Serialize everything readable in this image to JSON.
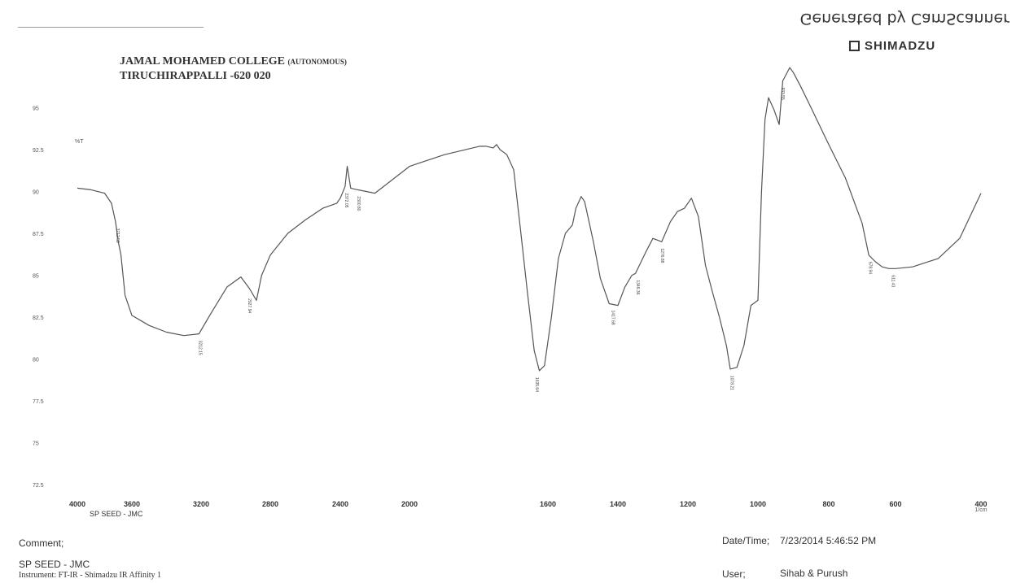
{
  "watermark": "Generated by CamScanner",
  "brand": "SHIMADZU",
  "header": {
    "line1_main": "JAMAL MOHAMED COLLEGE",
    "line1_suffix": "(AUTONOMOUS)",
    "line2": "TIRUCHIRAPPALLI -620 020"
  },
  "chart_data": {
    "type": "line",
    "title": "",
    "xlabel": "1/cm",
    "ylabel": "%T",
    "xlim": [
      4000,
      400
    ],
    "ylim": [
      72.5,
      97.5
    ],
    "x_ticks": [
      4000,
      3600,
      3200,
      2800,
      2400,
      2000,
      1600,
      1400,
      1200,
      1000,
      800,
      600,
      400
    ],
    "y_ticks": [
      72.5,
      75,
      77.5,
      80,
      82.5,
      85,
      87.5,
      90,
      92.5,
      95
    ],
    "sample_label": "SP SEED - JMC",
    "series": [
      {
        "x": [
          4000,
          3900,
          3800,
          3750,
          3720,
          3700,
          3680,
          3650,
          3600,
          3500,
          3400,
          3300,
          3212,
          3150,
          3050,
          2970,
          2920,
          2880,
          2850,
          2800,
          2700,
          2600,
          2500,
          2420,
          2400,
          2372,
          2360,
          2340,
          2300,
          2200,
          2100,
          2000,
          1900,
          1800,
          1780,
          1760,
          1750,
          1740,
          1720,
          1700,
          1680,
          1660,
          1640,
          1625,
          1610,
          1590,
          1570,
          1550,
          1530,
          1520,
          1505,
          1495,
          1470,
          1450,
          1425,
          1400,
          1380,
          1360,
          1350,
          1320,
          1300,
          1275,
          1250,
          1230,
          1210,
          1190,
          1170,
          1150,
          1130,
          1110,
          1090,
          1079,
          1060,
          1040,
          1020,
          1000,
          990,
          980,
          970,
          955,
          940,
          930,
          910,
          900,
          880,
          850,
          800,
          750,
          700,
          680,
          660,
          640,
          620,
          600,
          560,
          500,
          450,
          400
        ],
        "y": [
          90.2,
          90.1,
          89.9,
          89.3,
          88.2,
          87.0,
          86.2,
          83.8,
          82.6,
          82.0,
          81.6,
          81.4,
          81.5,
          82.6,
          84.3,
          84.9,
          84.2,
          83.5,
          85.0,
          86.2,
          87.5,
          88.3,
          89.0,
          89.3,
          89.6,
          90.3,
          91.5,
          90.2,
          90.1,
          89.9,
          90.7,
          91.5,
          92.2,
          92.7,
          92.7,
          92.6,
          92.8,
          92.5,
          92.2,
          91.3,
          87.7,
          84.0,
          80.5,
          79.3,
          79.6,
          82.5,
          86.0,
          87.5,
          88.0,
          89.0,
          89.7,
          89.4,
          87.0,
          84.8,
          83.3,
          83.2,
          84.3,
          85.0,
          85.1,
          86.4,
          87.2,
          87.0,
          88.2,
          88.8,
          89.0,
          89.6,
          88.5,
          85.6,
          84.0,
          82.5,
          80.8,
          79.4,
          79.5,
          80.8,
          83.2,
          83.5,
          90.0,
          94.3,
          95.6,
          94.9,
          94.0,
          96.6,
          97.4,
          97.1,
          96.3,
          95.0,
          92.8,
          90.8,
          88.1,
          86.2,
          85.8,
          85.5,
          85.4,
          85.4,
          85.5,
          86.0,
          87.2,
          89.9
        ]
      }
    ],
    "peak_labels": [
      {
        "x": 3712.59,
        "y": 88.2,
        "label": "3712.59"
      },
      {
        "x": 3212.15,
        "y": 81.5,
        "label": "3212.15"
      },
      {
        "x": 2927.94,
        "y": 84.0,
        "label": "2927.94"
      },
      {
        "x": 2372.05,
        "y": 90.3,
        "label": "2372.05"
      },
      {
        "x": 2300.8,
        "y": 90.1,
        "label": "2300.80"
      },
      {
        "x": 1635.64,
        "y": 79.3,
        "label": "1635.64"
      },
      {
        "x": 1417.68,
        "y": 83.3,
        "label": "1417.68"
      },
      {
        "x": 1346.36,
        "y": 85.1,
        "label": "1346.36"
      },
      {
        "x": 1276.88,
        "y": 87.0,
        "label": "1276.88"
      },
      {
        "x": 1078.21,
        "y": 79.4,
        "label": "1078.21"
      },
      {
        "x": 933.55,
        "y": 96.6,
        "label": "933.55"
      },
      {
        "x": 678.94,
        "y": 86.2,
        "label": "678.94"
      },
      {
        "x": 611.43,
        "y": 85.4,
        "label": "611.43"
      }
    ]
  },
  "footer": {
    "comment_label": "Comment;",
    "comment_value": "SP SEED - JMC",
    "instrument": "Instrument: FT-IR - Shimadzu IR Affinity 1",
    "datetime_label": "Date/Time;",
    "datetime_value": "7/23/2014 5:46:52 PM",
    "user_label": "User;",
    "user_value": "Sihab & Purush"
  }
}
